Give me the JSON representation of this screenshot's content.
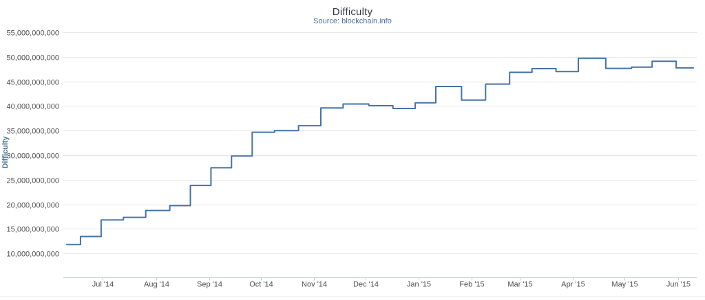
{
  "chart_data": {
    "type": "line",
    "line_style": "step-after",
    "title": "Difficulty",
    "subtitle": "Source: blockchain.info",
    "xlabel": "",
    "ylabel": "Difficulty",
    "series_name": "Difficulty",
    "ylim": [
      5000000000,
      55000000000
    ],
    "x_domain": [
      "2014-06-08",
      "2015-06-12"
    ],
    "grid": "horizontal-only",
    "legend": "none",
    "y_ticks": [
      {
        "value": 10000000000,
        "label": "10,000,000,000"
      },
      {
        "value": 15000000000,
        "label": "15,000,000,000"
      },
      {
        "value": 20000000000,
        "label": "20,000,000,000"
      },
      {
        "value": 25000000000,
        "label": "25,000,000,000"
      },
      {
        "value": 30000000000,
        "label": "30,000,000,000"
      },
      {
        "value": 35000000000,
        "label": "35,000,000,000"
      },
      {
        "value": 40000000000,
        "label": "40,000,000,000"
      },
      {
        "value": 45000000000,
        "label": "45,000,000,000"
      },
      {
        "value": 50000000000,
        "label": "50,000,000,000"
      },
      {
        "value": 55000000000,
        "label": "55,000,000,000"
      }
    ],
    "x_ticks": [
      {
        "date": "2014-07-01",
        "label": "Jul '14"
      },
      {
        "date": "2014-08-01",
        "label": "Aug '14"
      },
      {
        "date": "2014-09-01",
        "label": "Sep '14"
      },
      {
        "date": "2014-10-01",
        "label": "Oct '14"
      },
      {
        "date": "2014-11-01",
        "label": "Nov '14"
      },
      {
        "date": "2014-12-01",
        "label": "Dec '14"
      },
      {
        "date": "2015-01-01",
        "label": "Jan '15"
      },
      {
        "date": "2015-02-01",
        "label": "Feb '15"
      },
      {
        "date": "2015-03-01",
        "label": "Mar '15"
      },
      {
        "date": "2015-04-01",
        "label": "Apr '15"
      },
      {
        "date": "2015-05-01",
        "label": "May '15"
      },
      {
        "date": "2015-06-01",
        "label": "Jun '15"
      }
    ],
    "points": [
      {
        "date": "2014-06-10",
        "value": 11800000000
      },
      {
        "date": "2014-06-18",
        "value": 13450000000
      },
      {
        "date": "2014-06-30",
        "value": 16820000000
      },
      {
        "date": "2014-07-13",
        "value": 17340000000
      },
      {
        "date": "2014-07-26",
        "value": 18740000000
      },
      {
        "date": "2014-08-09",
        "value": 19730000000
      },
      {
        "date": "2014-08-21",
        "value": 23840000000
      },
      {
        "date": "2014-09-02",
        "value": 27430000000
      },
      {
        "date": "2014-09-14",
        "value": 29830000000
      },
      {
        "date": "2014-09-26",
        "value": 34660000000
      },
      {
        "date": "2014-10-09",
        "value": 35000000000
      },
      {
        "date": "2014-10-23",
        "value": 35990000000
      },
      {
        "date": "2014-11-05",
        "value": 39600000000
      },
      {
        "date": "2014-11-18",
        "value": 40400000000
      },
      {
        "date": "2014-12-03",
        "value": 40050000000
      },
      {
        "date": "2014-12-17",
        "value": 39500000000
      },
      {
        "date": "2014-12-30",
        "value": 40650000000
      },
      {
        "date": "2015-01-11",
        "value": 43970000000
      },
      {
        "date": "2015-01-26",
        "value": 41200000000
      },
      {
        "date": "2015-02-09",
        "value": 44450000000
      },
      {
        "date": "2015-02-23",
        "value": 46850000000
      },
      {
        "date": "2015-03-08",
        "value": 47600000000
      },
      {
        "date": "2015-03-22",
        "value": 47000000000
      },
      {
        "date": "2015-04-04",
        "value": 49700000000
      },
      {
        "date": "2015-04-20",
        "value": 47650000000
      },
      {
        "date": "2015-05-05",
        "value": 47900000000
      },
      {
        "date": "2015-05-17",
        "value": 49100000000
      },
      {
        "date": "2015-05-31",
        "value": 47750000000
      },
      {
        "date": "2015-06-10",
        "value": 47750000000
      }
    ],
    "colors": {
      "line": "#4572a7",
      "grid": "#e6e6e6",
      "axis_line": "#c0d0e0",
      "tick_mark": "#c0d0e0",
      "title": "#333740",
      "subtitle": "#4a6d9c",
      "tick_label": "#4d4d4d",
      "y_axis_title": "#4d759e",
      "divider": "#e2e2e2"
    }
  }
}
